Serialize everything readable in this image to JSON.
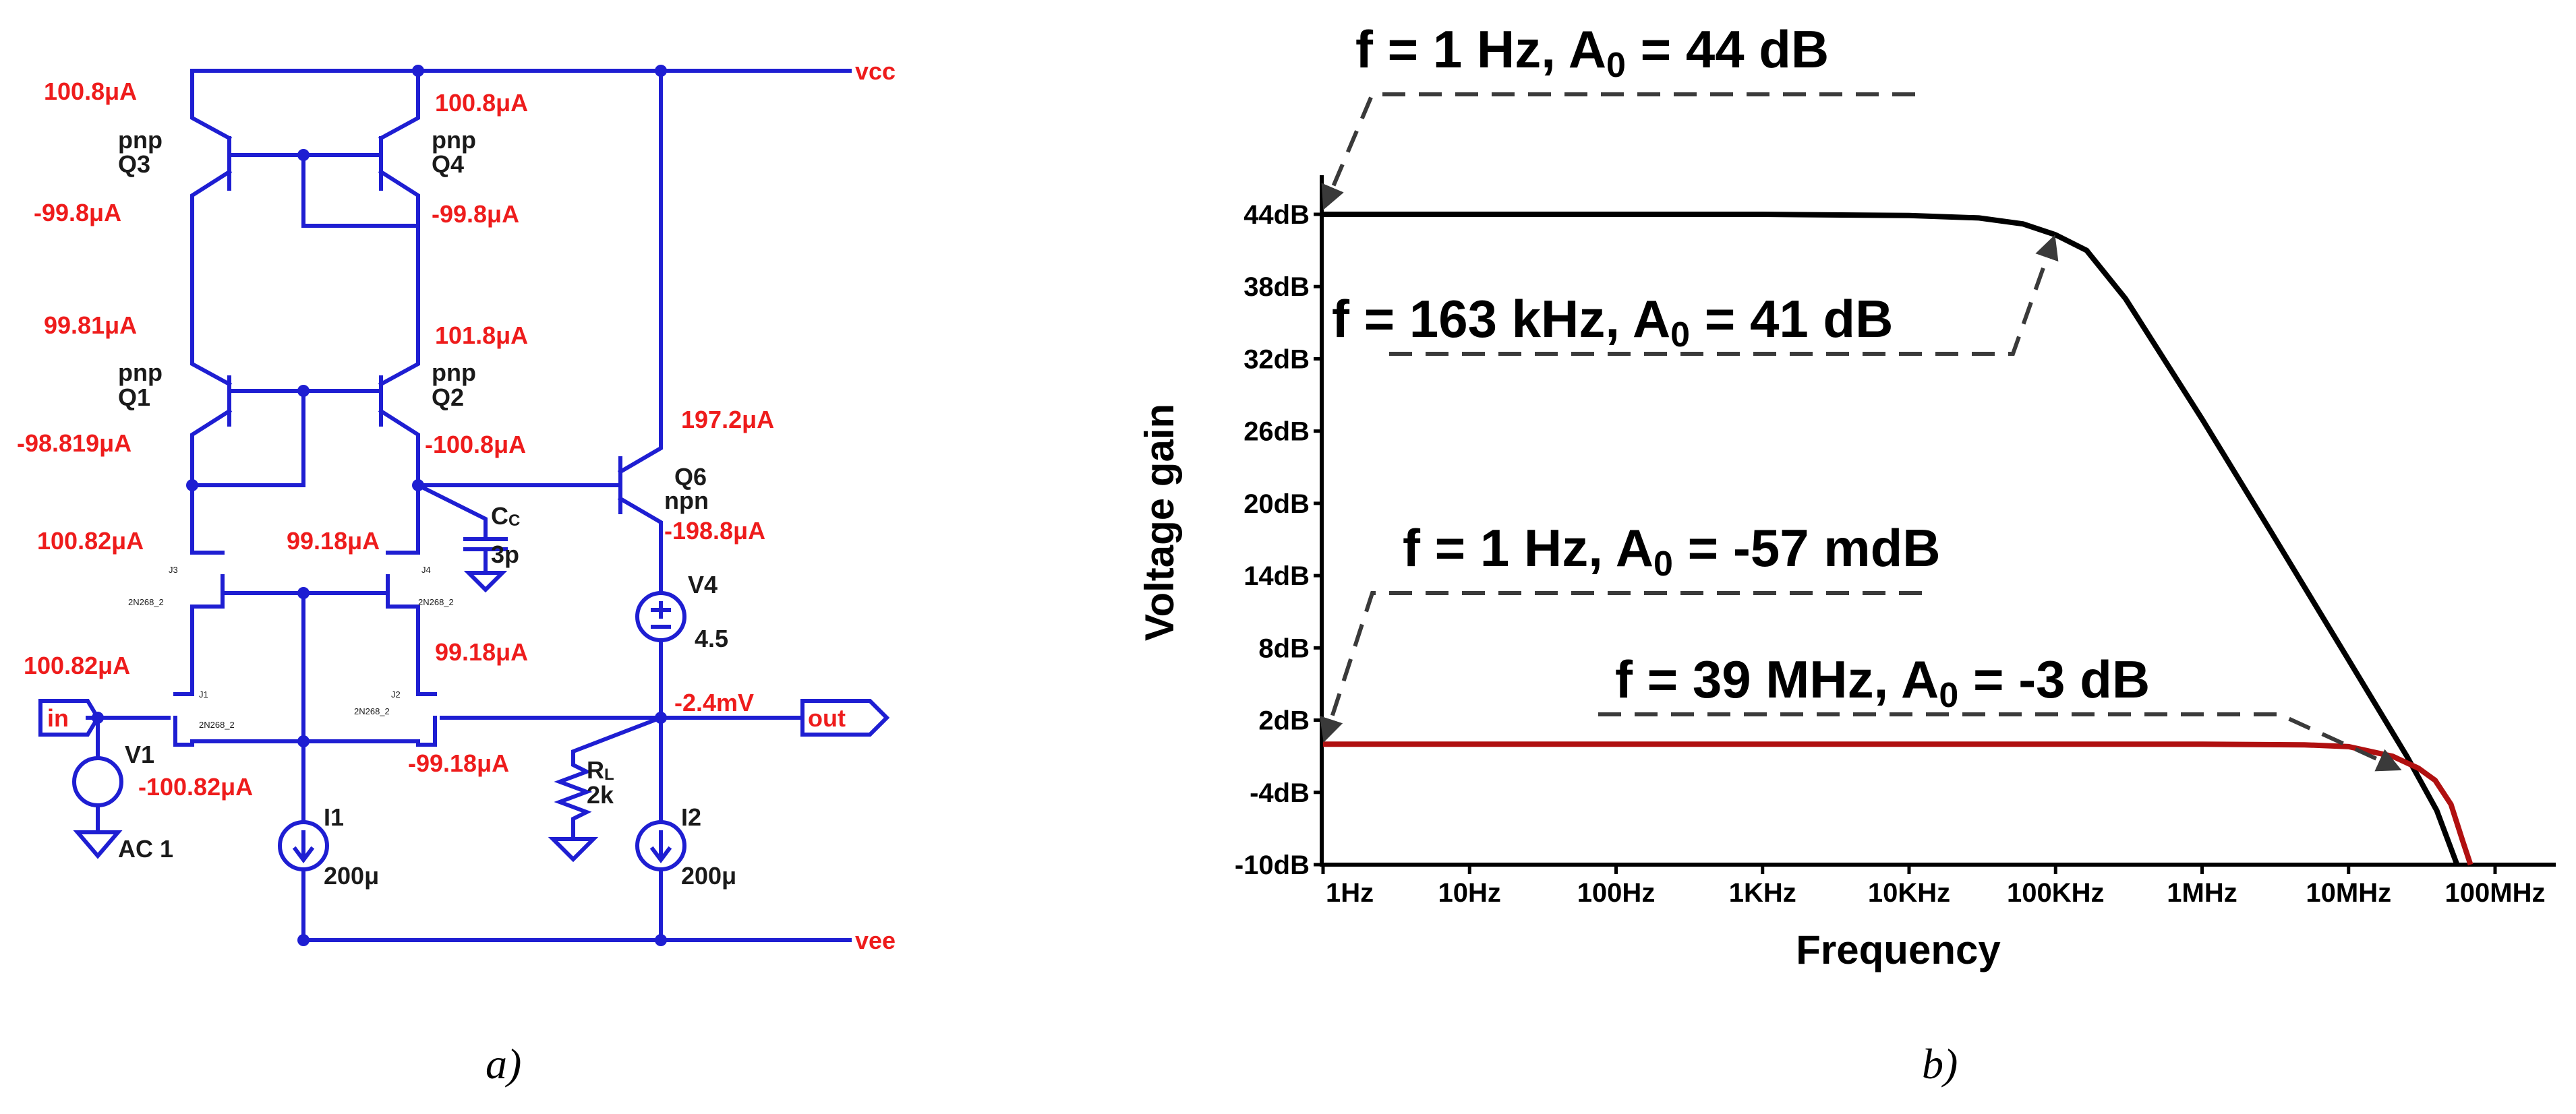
{
  "caption_a": "a)",
  "caption_b": "b)",
  "circuit": {
    "nets": {
      "vcc": "vcc",
      "vee": "vee",
      "in": "in",
      "out": "out"
    },
    "transistors": {
      "Q3": {
        "type": "pnp",
        "name": "Q3"
      },
      "Q4": {
        "type": "pnp",
        "name": "Q4"
      },
      "Q1": {
        "type": "pnp",
        "name": "Q1"
      },
      "Q2": {
        "type": "pnp",
        "name": "Q2"
      },
      "Q6": {
        "type": "npn",
        "name": "Q6"
      },
      "J1": {
        "name": "J1",
        "model": "2N268_2"
      },
      "J2": {
        "name": "J2",
        "model": "2N268_2"
      },
      "J3": {
        "name": "J3",
        "model": "2N268_2"
      },
      "J4": {
        "name": "J4",
        "model": "2N268_2"
      }
    },
    "currents": {
      "q3_top": "100.8μA",
      "q3_bot": "-99.8μA",
      "q4_top": "100.8μA",
      "q4_bot": "-99.8μA",
      "q1_top": "99.81μA",
      "q1_bot": "-98.819μA",
      "q2_top": "101.8μA",
      "q2_bot": "-100.8μA",
      "q6_top": "197.2μA",
      "q6_bot": "-198.8μA",
      "j3": "100.82μA",
      "j4": "99.18μA",
      "j1_top": "100.82μA",
      "j1_bot": "-100.82μA",
      "j2_top": "99.18μA",
      "j2_bot": "-99.18μA",
      "out_v": "-2.4mV"
    },
    "cc": {
      "name": "C",
      "sub": "C",
      "value": "3p"
    },
    "rl": {
      "name": "R",
      "sub": "L",
      "value": "2k"
    },
    "v1": {
      "name": "V1",
      "value": "AC 1"
    },
    "v4": {
      "name": "V4",
      "value": "4.5"
    },
    "i1": {
      "name": "I1",
      "value": "200μ"
    },
    "i2": {
      "name": "I2",
      "value": "200μ"
    }
  },
  "chart_data": {
    "type": "line",
    "xlabel": "Frequency",
    "ylabel": "Voltage gain",
    "x_scale": "log",
    "xlim": [
      1,
      100000000
    ],
    "ylim": [
      -10,
      44
    ],
    "x_ticks": [
      "1Hz",
      "10Hz",
      "100Hz",
      "1KHz",
      "10KHz",
      "100KHz",
      "1MHz",
      "10MHz",
      "100MHz"
    ],
    "y_ticks": [
      "44dB",
      "38dB",
      "32dB",
      "26dB",
      "20dB",
      "14dB",
      "8dB",
      "2dB",
      "-4dB",
      "-10dB"
    ],
    "series": [
      {
        "color": "#000000",
        "points": [
          [
            1,
            44
          ],
          [
            1000,
            44
          ],
          [
            10000,
            43.9
          ],
          [
            30000,
            43.7
          ],
          [
            60000,
            43.2
          ],
          [
            100000,
            42.3
          ],
          [
            163000,
            41
          ],
          [
            300000,
            37
          ],
          [
            1000000,
            27
          ],
          [
            3000000,
            17.5
          ],
          [
            10000000,
            7
          ],
          [
            25000000,
            -1
          ],
          [
            40000000,
            -5.5
          ],
          [
            55000000,
            -10
          ]
        ]
      },
      {
        "color": "#b01010",
        "points": [
          [
            1,
            0
          ],
          [
            1000,
            0
          ],
          [
            1000000,
            0
          ],
          [
            5000000,
            -0.05
          ],
          [
            10000000,
            -0.2
          ],
          [
            20000000,
            -1
          ],
          [
            30000000,
            -2
          ],
          [
            39000000,
            -3
          ],
          [
            50000000,
            -5
          ],
          [
            60000000,
            -8
          ],
          [
            68000000,
            -10
          ]
        ]
      }
    ],
    "annotations": [
      {
        "pre": "f = 1 Hz, A",
        "sub": "0",
        "post": " = 44 dB"
      },
      {
        "pre": "f = 163 kHz, A",
        "sub": "0",
        "post": " = 41 dB"
      },
      {
        "pre": "f = 1 Hz, A",
        "sub": "0",
        "post": " = -57 mdB"
      },
      {
        "pre": "f = 39 MHz, A",
        "sub": "0",
        "post": " = -3 dB"
      }
    ]
  }
}
